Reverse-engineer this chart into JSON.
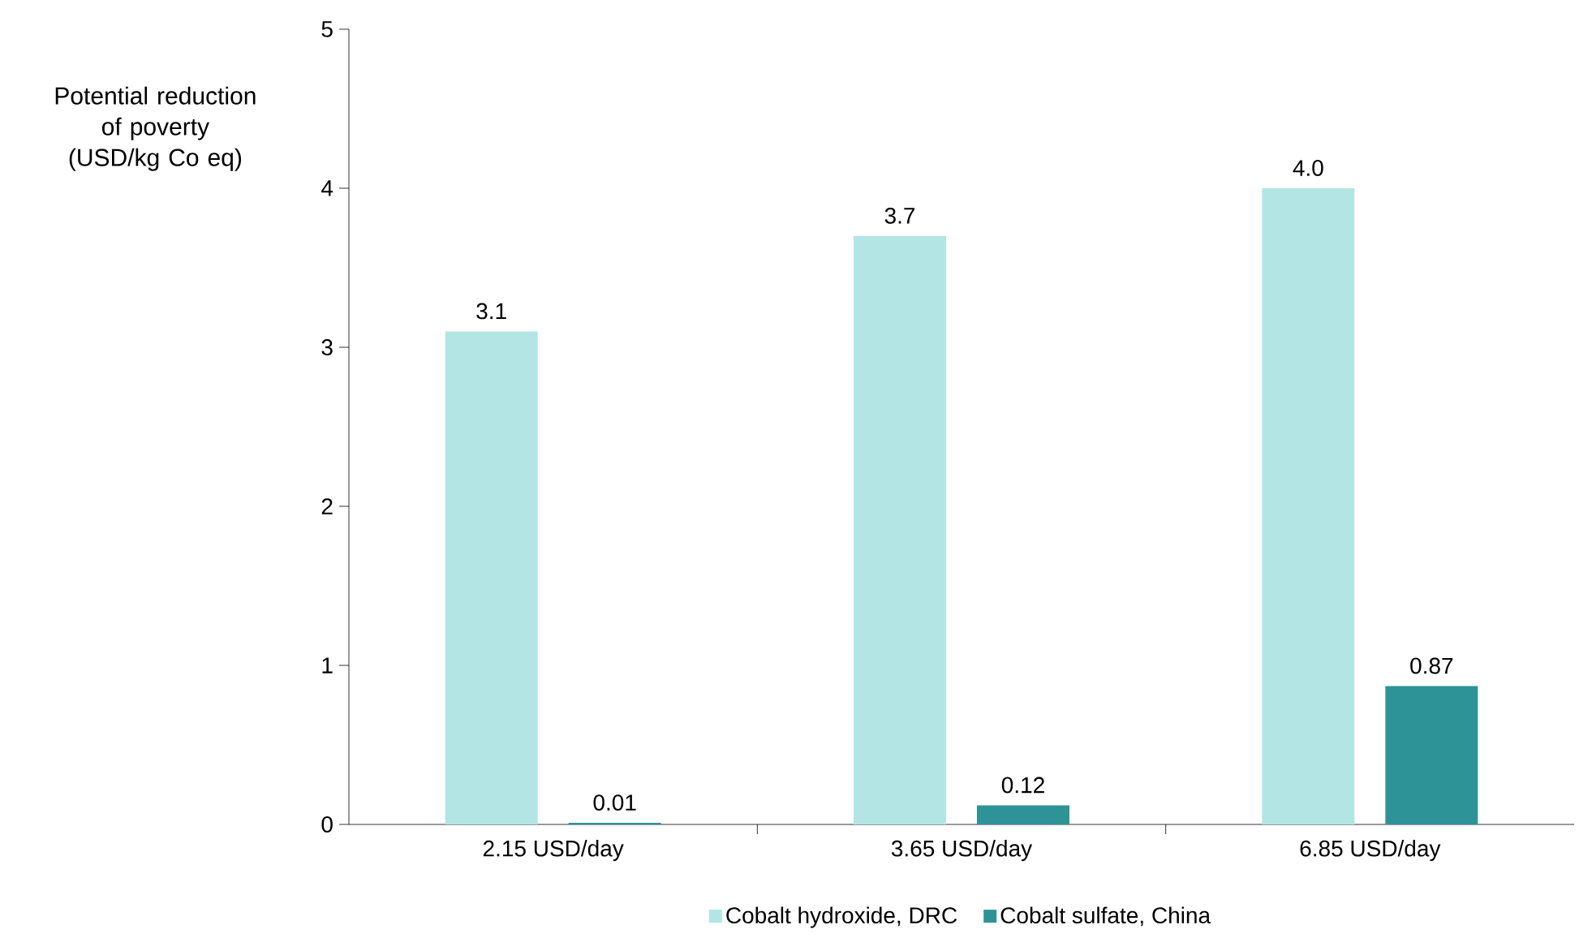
{
  "chart_data": {
    "type": "bar",
    "ylabel": "Potential reduction of poverty (USD/kg Co eq)",
    "categories": [
      "2.15 USD/day",
      "3.65 USD/day",
      "6.85 USD/day"
    ],
    "series": [
      {
        "name": "Cobalt hydroxide, DRC",
        "color": "#b3e5e5",
        "values": [
          3.1,
          3.7,
          4.0
        ],
        "value_labels": [
          "3.1",
          "3.7",
          "4.0"
        ]
      },
      {
        "name": "Cobalt sulfate, China",
        "color": "#2e9397",
        "values": [
          0.01,
          0.12,
          0.87
        ],
        "value_labels": [
          "0.01",
          "0.12",
          "0.87"
        ]
      }
    ],
    "ylim": [
      0,
      5
    ],
    "yticks": [
      0,
      1,
      2,
      3,
      4,
      5
    ],
    "grid": false,
    "legend": "bottom"
  }
}
